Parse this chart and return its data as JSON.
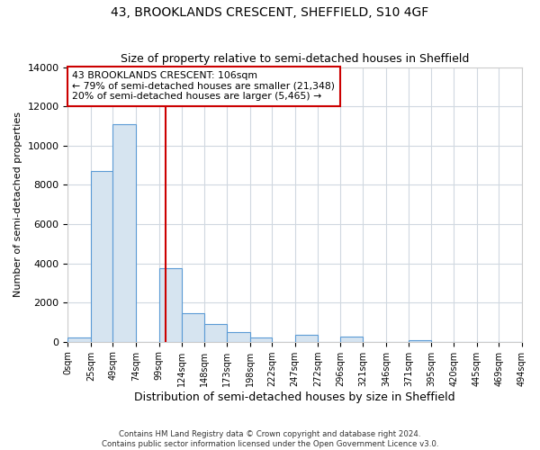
{
  "title": "43, BROOKLANDS CRESCENT, SHEFFIELD, S10 4GF",
  "subtitle": "Size of property relative to semi-detached houses in Sheffield",
  "xlabel": "Distribution of semi-detached houses by size in Sheffield",
  "ylabel": "Number of semi-detached properties",
  "property_label": "43 BROOKLANDS CRESCENT: 106sqm",
  "annotation_line1": "← 79% of semi-detached houses are smaller (21,348)",
  "annotation_line2": "20% of semi-detached houses are larger (5,465) →",
  "footer_line1": "Contains HM Land Registry data © Crown copyright and database right 2024.",
  "footer_line2": "Contains public sector information licensed under the Open Government Licence v3.0.",
  "bin_edges": [
    0,
    25,
    49,
    74,
    99,
    124,
    148,
    173,
    198,
    222,
    247,
    272,
    296,
    321,
    346,
    371,
    395,
    420,
    445,
    469,
    494
  ],
  "bin_labels": [
    "0sqm",
    "25sqm",
    "49sqm",
    "74sqm",
    "99sqm",
    "124sqm",
    "148sqm",
    "173sqm",
    "198sqm",
    "222sqm",
    "247sqm",
    "272sqm",
    "296sqm",
    "321sqm",
    "346sqm",
    "371sqm",
    "395sqm",
    "420sqm",
    "445sqm",
    "469sqm",
    "494sqm"
  ],
  "bar_heights": [
    200,
    8700,
    11100,
    0,
    3750,
    1450,
    900,
    500,
    200,
    0,
    350,
    0,
    250,
    0,
    0,
    100,
    0,
    0,
    0,
    0
  ],
  "bar_color": "#d6e4f0",
  "bar_edge_color": "#5b9bd5",
  "vline_x": 106,
  "vline_color": "#cc0000",
  "box_color": "#cc0000",
  "ylim": [
    0,
    14000
  ],
  "yticks": [
    0,
    2000,
    4000,
    6000,
    8000,
    10000,
    12000,
    14000
  ],
  "bg_color": "#ffffff",
  "plot_bg_color": "#ffffff",
  "grid_color": "#d0d8e0",
  "title_fontsize": 10,
  "subtitle_fontsize": 9
}
